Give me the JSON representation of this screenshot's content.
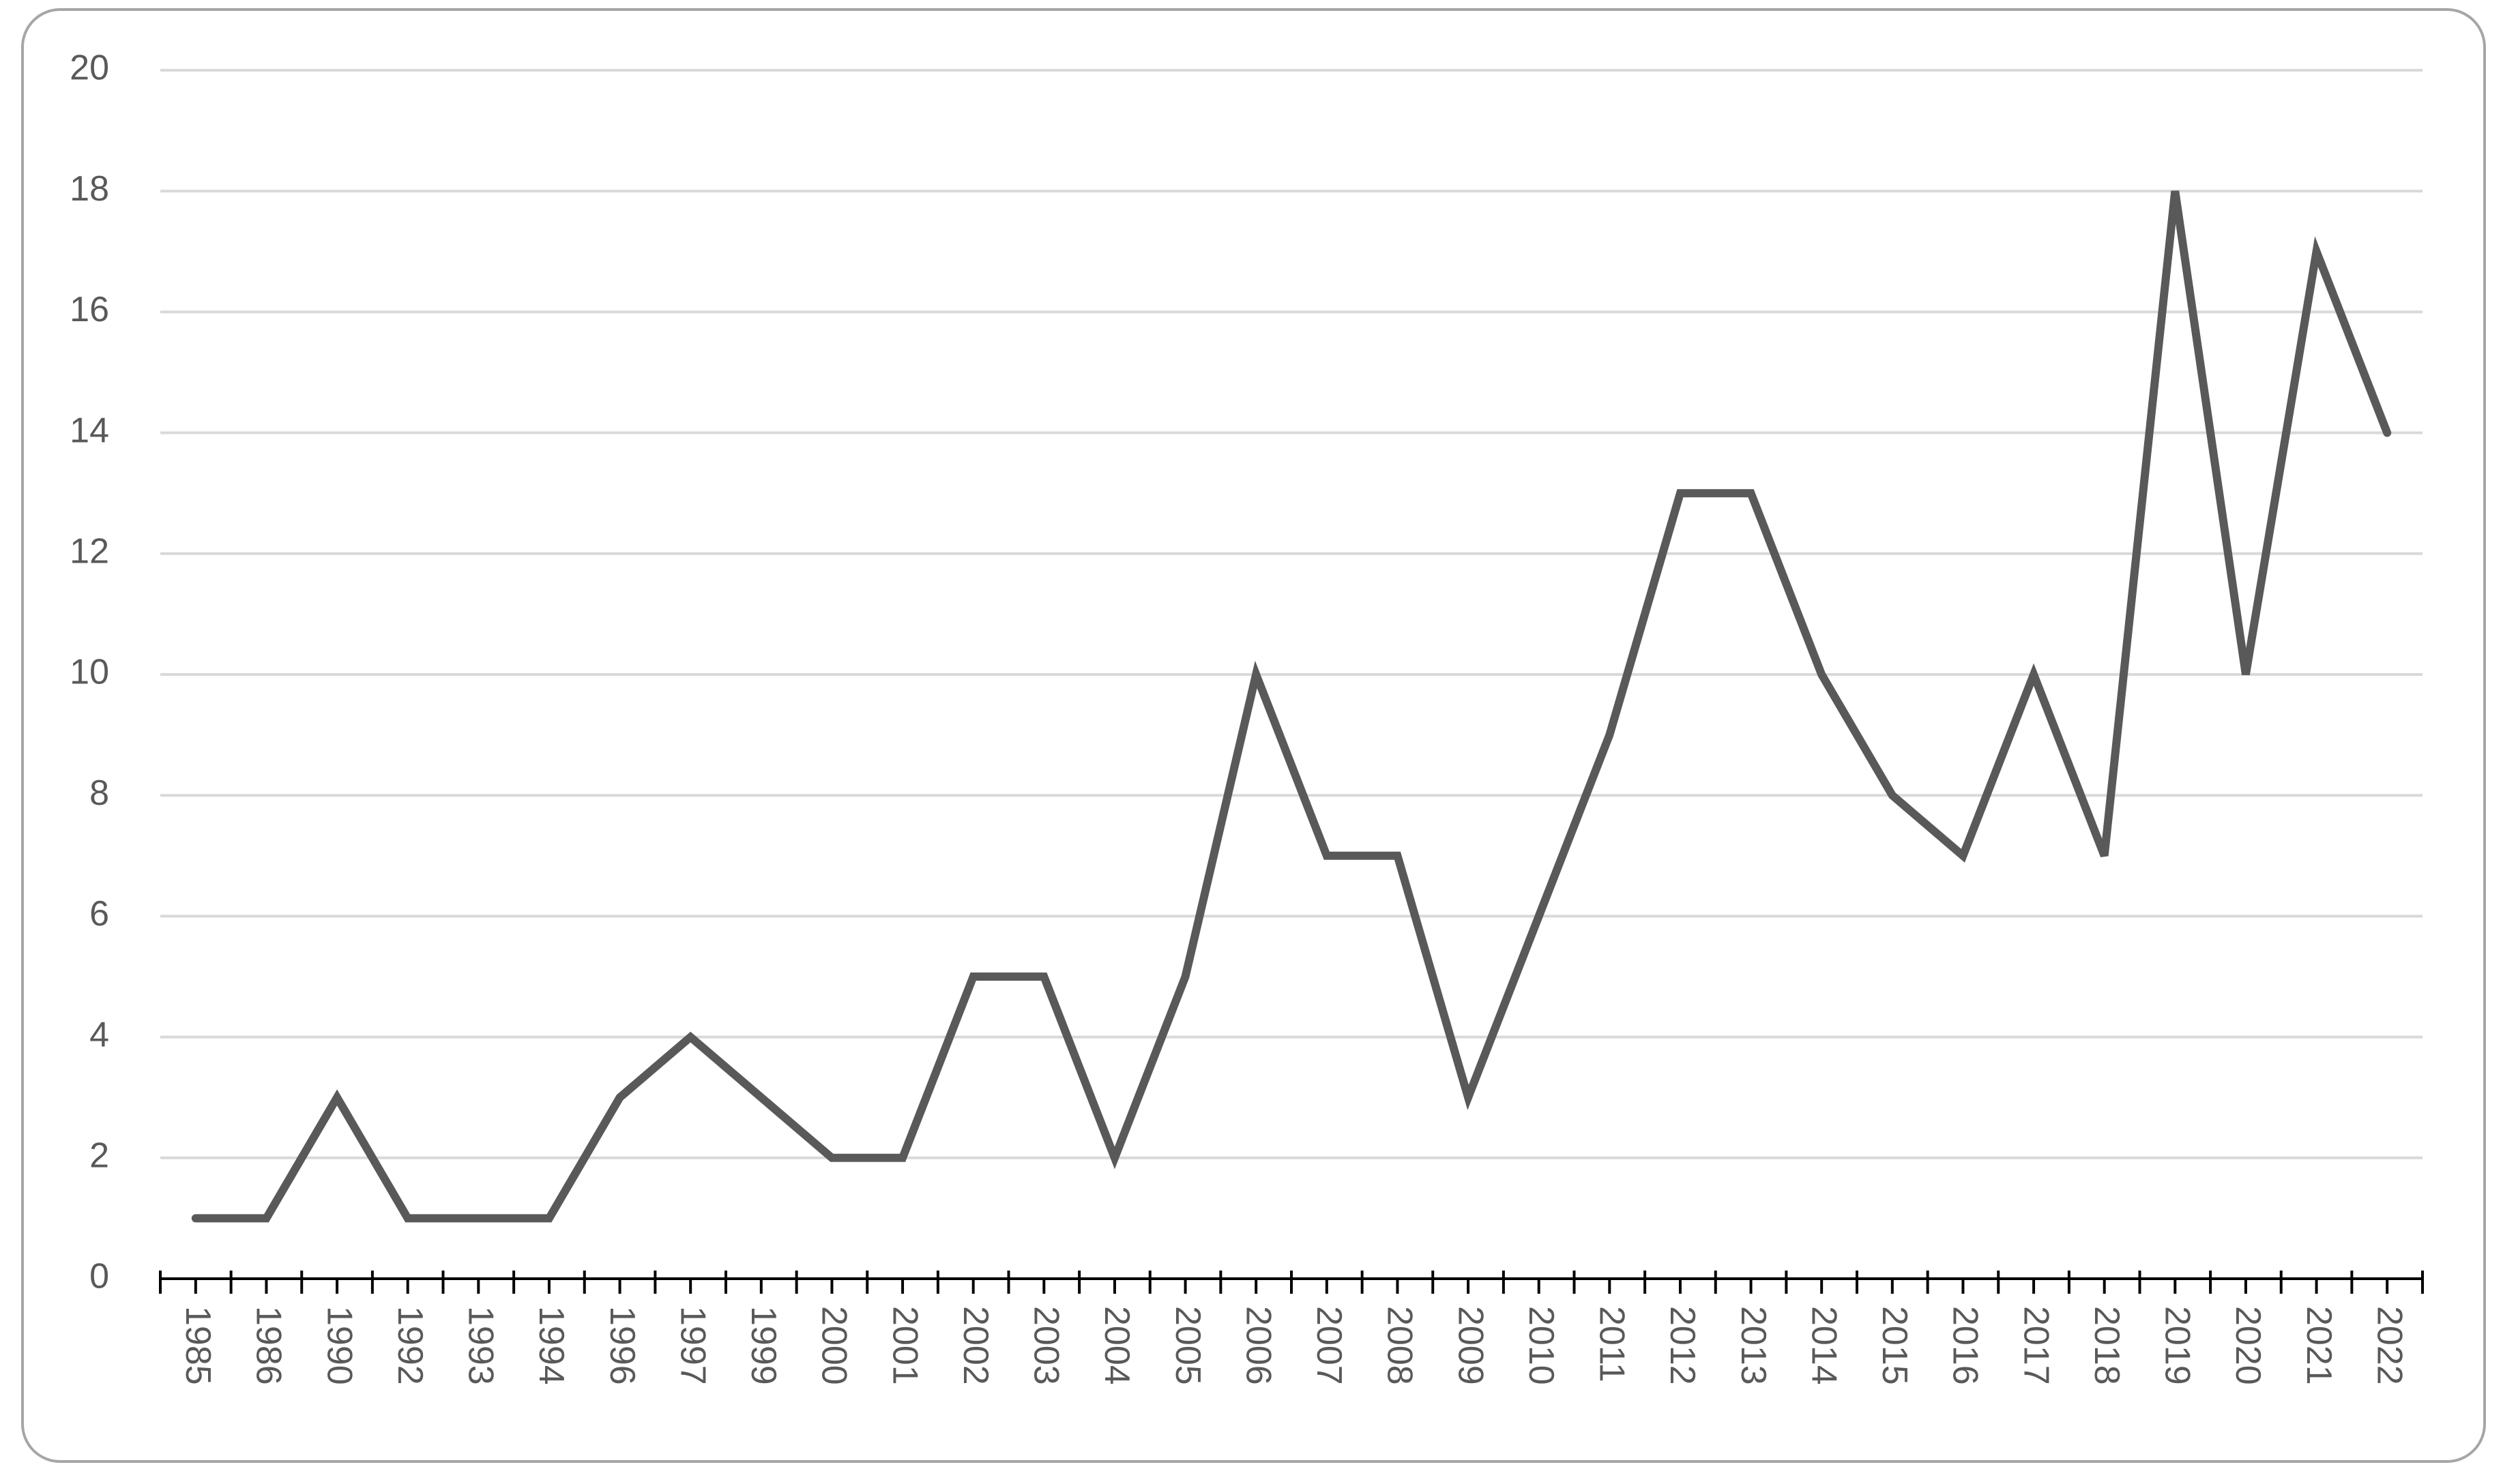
{
  "chart_data": {
    "type": "line",
    "categories": [
      "1985",
      "1986",
      "1990",
      "1992",
      "1993",
      "1994",
      "1996",
      "1997",
      "1999",
      "2000",
      "2001",
      "2002",
      "2003",
      "2004",
      "2005",
      "2006",
      "2007",
      "2008",
      "2009",
      "2010",
      "2011",
      "2012",
      "2013",
      "2014",
      "2015",
      "2016",
      "2017",
      "2018",
      "2019",
      "2020",
      "2021",
      "2022"
    ],
    "values": [
      1,
      1,
      3,
      1,
      1,
      1,
      3,
      4,
      3,
      2,
      2,
      5,
      5,
      2,
      5,
      10,
      7,
      7,
      3,
      6,
      9,
      13,
      13,
      10,
      8,
      7,
      10,
      7,
      18,
      10,
      17,
      14
    ],
    "color": "#595959",
    "ylim": [
      0,
      20
    ],
    "yticks": [
      0,
      2,
      4,
      6,
      8,
      10,
      12,
      14,
      16,
      18,
      20
    ],
    "grid": true
  }
}
